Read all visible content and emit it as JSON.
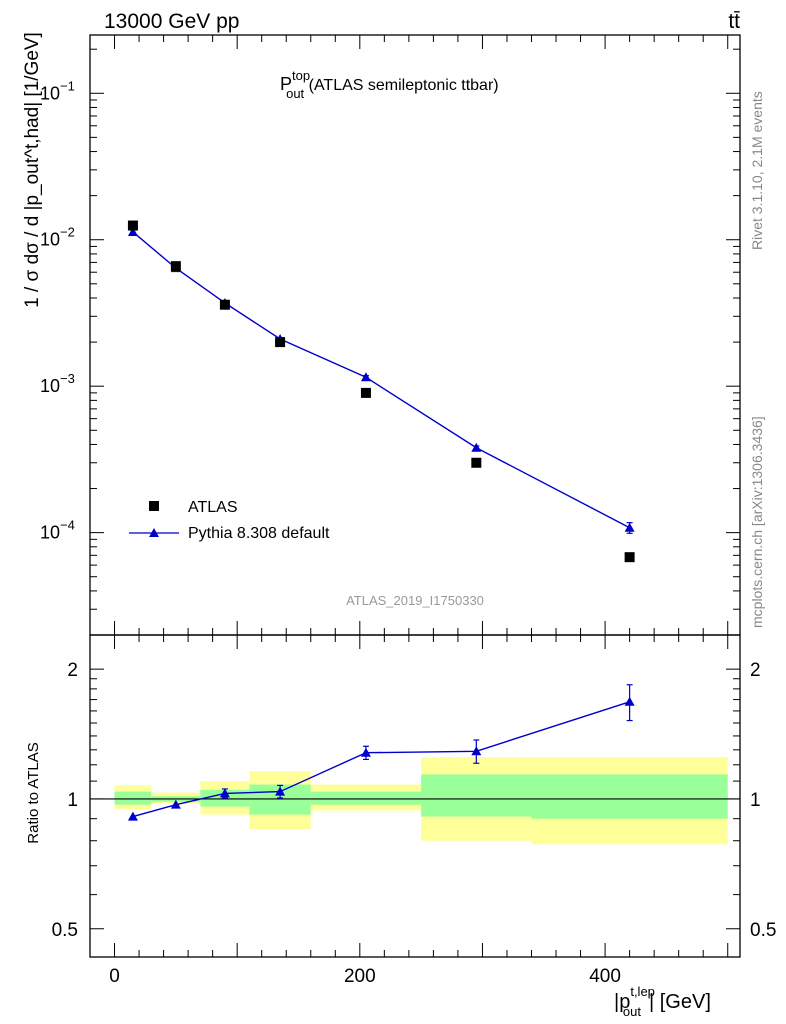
{
  "header": {
    "energy_label": "13000 GeV pp",
    "process_label": "tt̄"
  },
  "side_labels": {
    "rivet": "Rivet 3.1.10,  2.1M events",
    "mcplots": "mcplots.cern.ch [arXiv:1306.3436]"
  },
  "chart_data": [
    {
      "type": "scatter",
      "title_main": "P",
      "title_sup": "top",
      "title_sub": "out",
      "title_rest": " (ATLAS semileptonic ttbar)",
      "analysis_id": "ATLAS_2019_I1750330",
      "ylabel": "1 / σ dσ / d |p_out^t,had| [1/GeV]",
      "yscale": "log",
      "ylim": [
        2e-05,
        0.25
      ],
      "xlim": [
        -20,
        510
      ],
      "yticks": [
        {
          "value": 0.1,
          "base": "10",
          "exp": "−1"
        },
        {
          "value": 0.01,
          "base": "10",
          "exp": "−2"
        },
        {
          "value": 0.001,
          "base": "10",
          "exp": "−3"
        },
        {
          "value": 0.0001,
          "base": "10",
          "exp": "−4"
        }
      ],
      "legend": {
        "placement": "lower-left",
        "entries": [
          "ATLAS",
          "Pythia 8.308 default"
        ]
      },
      "series": [
        {
          "name": "ATLAS",
          "marker": "square",
          "color": "#000000",
          "x": [
            15,
            50,
            90,
            135,
            205,
            295,
            420
          ],
          "y": [
            0.0125,
            0.0066,
            0.0036,
            0.002,
            0.0009,
            0.0003,
            6.8e-05
          ]
        },
        {
          "name": "Pythia 8.308 default",
          "marker": "triangle",
          "color": "#0000cc",
          "x": [
            15,
            50,
            90,
            135,
            205,
            295,
            420
          ],
          "y": [
            0.0113,
            0.0064,
            0.0037,
            0.0021,
            0.00115,
            0.00038,
            0.000108
          ],
          "yerr": [
            0,
            0,
            0,
            0,
            3e-05,
            1e-05,
            9e-06
          ]
        }
      ]
    },
    {
      "type": "line",
      "ylabel": "Ratio to ATLAS",
      "xlabel_main": "|p",
      "xlabel_sup": "t,lep",
      "xlabel_sub": "out",
      "xlabel_rest": "| [GeV]",
      "yscale": "log",
      "ylim": [
        0.43,
        2.4
      ],
      "xlim": [
        -20,
        510
      ],
      "yticks": [
        {
          "value": 0.5,
          "label": "0.5"
        },
        {
          "value": 1,
          "label": "1"
        },
        {
          "value": 2,
          "label": "2"
        }
      ],
      "xticks": [
        {
          "value": 0,
          "label": "0"
        },
        {
          "value": 200,
          "label": "200"
        },
        {
          "value": 400,
          "label": "400"
        }
      ],
      "bands": [
        {
          "x0": 0,
          "x1": 30,
          "g_lo": 0.97,
          "g_hi": 1.04,
          "y_lo": 0.945,
          "y_hi": 1.075
        },
        {
          "x0": 30,
          "x1": 70,
          "g_lo": 0.985,
          "g_hi": 1.015,
          "y_lo": 0.975,
          "y_hi": 1.035
        },
        {
          "x0": 70,
          "x1": 110,
          "g_lo": 0.96,
          "g_hi": 1.05,
          "y_lo": 0.92,
          "y_hi": 1.1
        },
        {
          "x0": 110,
          "x1": 160,
          "g_lo": 0.92,
          "g_hi": 1.08,
          "y_lo": 0.85,
          "y_hi": 1.16
        },
        {
          "x0": 160,
          "x1": 250,
          "g_lo": 0.97,
          "g_hi": 1.04,
          "y_lo": 0.94,
          "y_hi": 1.08
        },
        {
          "x0": 250,
          "x1": 340,
          "g_lo": 0.91,
          "g_hi": 1.14,
          "y_lo": 0.8,
          "y_hi": 1.25
        },
        {
          "x0": 340,
          "x1": 500,
          "g_lo": 0.9,
          "g_hi": 1.14,
          "y_lo": 0.785,
          "y_hi": 1.25
        }
      ],
      "series": [
        {
          "name": "Pythia 8.308 default",
          "color": "#0000cc",
          "x": [
            15,
            50,
            90,
            135,
            205,
            295,
            420
          ],
          "y": [
            0.91,
            0.97,
            1.03,
            1.04,
            1.28,
            1.29,
            1.68
          ],
          "yerr": [
            0,
            0,
            0.025,
            0.035,
            0.045,
            0.08,
            0.16
          ]
        }
      ],
      "colors": {
        "band_inner": "#99ff99",
        "band_outer": "#ffff99"
      }
    }
  ]
}
